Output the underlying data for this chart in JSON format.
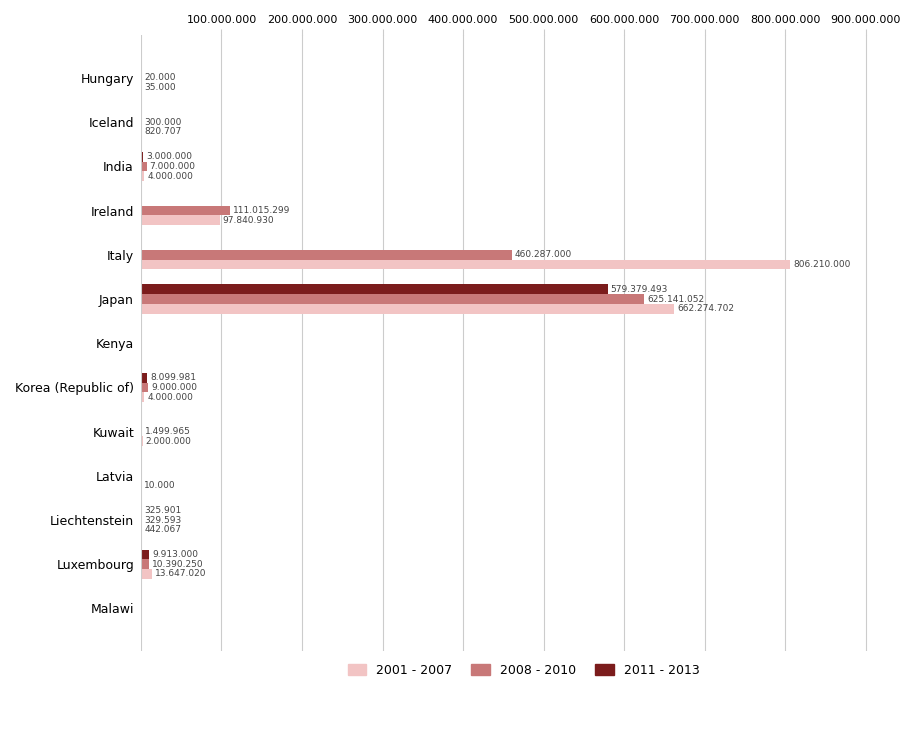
{
  "countries": [
    "Hungary",
    "Iceland",
    "India",
    "Ireland",
    "Italy",
    "Japan",
    "Kenya",
    "Korea (Republic of)",
    "Kuwait",
    "Latvia",
    "Liechtenstein",
    "Luxembourg",
    "Malawi"
  ],
  "series": {
    "2001 - 2007": [
      35000,
      820707,
      4000000,
      97840930,
      806210000,
      662274702,
      0,
      4000000,
      2000000,
      10000,
      442067,
      13647020,
      0
    ],
    "2008 - 2010": [
      20000,
      300000,
      7000000,
      111015299,
      460287000,
      625141052,
      0,
      9000000,
      1499965,
      0,
      329593,
      10390250,
      0
    ],
    "2011 - 2013": [
      0,
      0,
      3000000,
      0,
      0,
      579379493,
      0,
      8099981,
      0,
      0,
      325901,
      9913000,
      0
    ]
  },
  "label_values": {
    "2001 - 2007": [
      35000,
      820707,
      4000000,
      97840930,
      806210000,
      662274702,
      null,
      4000000,
      2000000,
      10000,
      442067,
      13647020,
      null
    ],
    "2008 - 2010": [
      20000,
      300000,
      7000000,
      111015299,
      460287000,
      625141052,
      null,
      9000000,
      1499965,
      null,
      329593,
      10390250,
      null
    ],
    "2011 - 2013": [
      null,
      null,
      3000000,
      null,
      null,
      579379493,
      null,
      8099981,
      null,
      null,
      325901,
      9913000,
      null
    ]
  },
  "colors": {
    "2001 - 2007": "#f2c4c4",
    "2008 - 2010": "#c87878",
    "2011 - 2013": "#7b1c1c"
  },
  "xlim": [
    0,
    950000000
  ],
  "xtick_values": [
    100000000,
    200000000,
    300000000,
    400000000,
    500000000,
    600000000,
    700000000,
    800000000,
    900000000
  ],
  "bar_height": 0.22,
  "figsize": [
    9.21,
    7.3
  ],
  "dpi": 100,
  "background_color": "#ffffff",
  "grid_color": "#cccccc"
}
